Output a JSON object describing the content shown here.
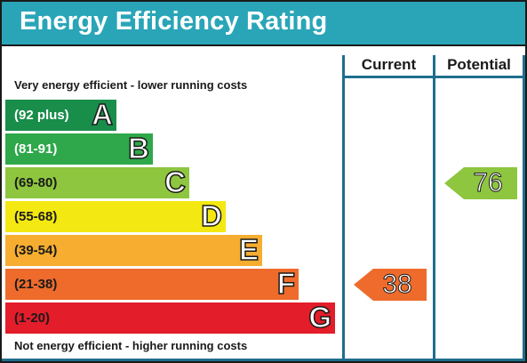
{
  "title": "Energy Efficiency Rating",
  "columns": {
    "current": "Current",
    "potential": "Potential"
  },
  "top_note": "Very energy efficient - lower running costs",
  "bottom_note": "Not energy efficient - higher running costs",
  "bands": [
    {
      "range": "(92 plus)",
      "letter": "A",
      "color": "#198d4a",
      "text_color": "#ffffff"
    },
    {
      "range": "(81-91)",
      "letter": "B",
      "color": "#2ea84a",
      "text_color": "#ffffff"
    },
    {
      "range": "(69-80)",
      "letter": "C",
      "color": "#8ec63f",
      "text_color": "#1a1a1a"
    },
    {
      "range": "(55-68)",
      "letter": "D",
      "color": "#f4e812",
      "text_color": "#1a1a1a"
    },
    {
      "range": "(39-54)",
      "letter": "E",
      "color": "#f6ad30",
      "text_color": "#1a1a1a"
    },
    {
      "range": "(21-38)",
      "letter": "F",
      "color": "#ee6b2c",
      "text_color": "#1a1a1a"
    },
    {
      "range": "(1-20)",
      "letter": "G",
      "color": "#e31d2a",
      "text_color": "#1a1a1a"
    }
  ],
  "current": {
    "value": "38",
    "band": "F",
    "color": "#ee6b2c"
  },
  "potential": {
    "value": "76",
    "band": "C",
    "color": "#8ec63f"
  }
}
